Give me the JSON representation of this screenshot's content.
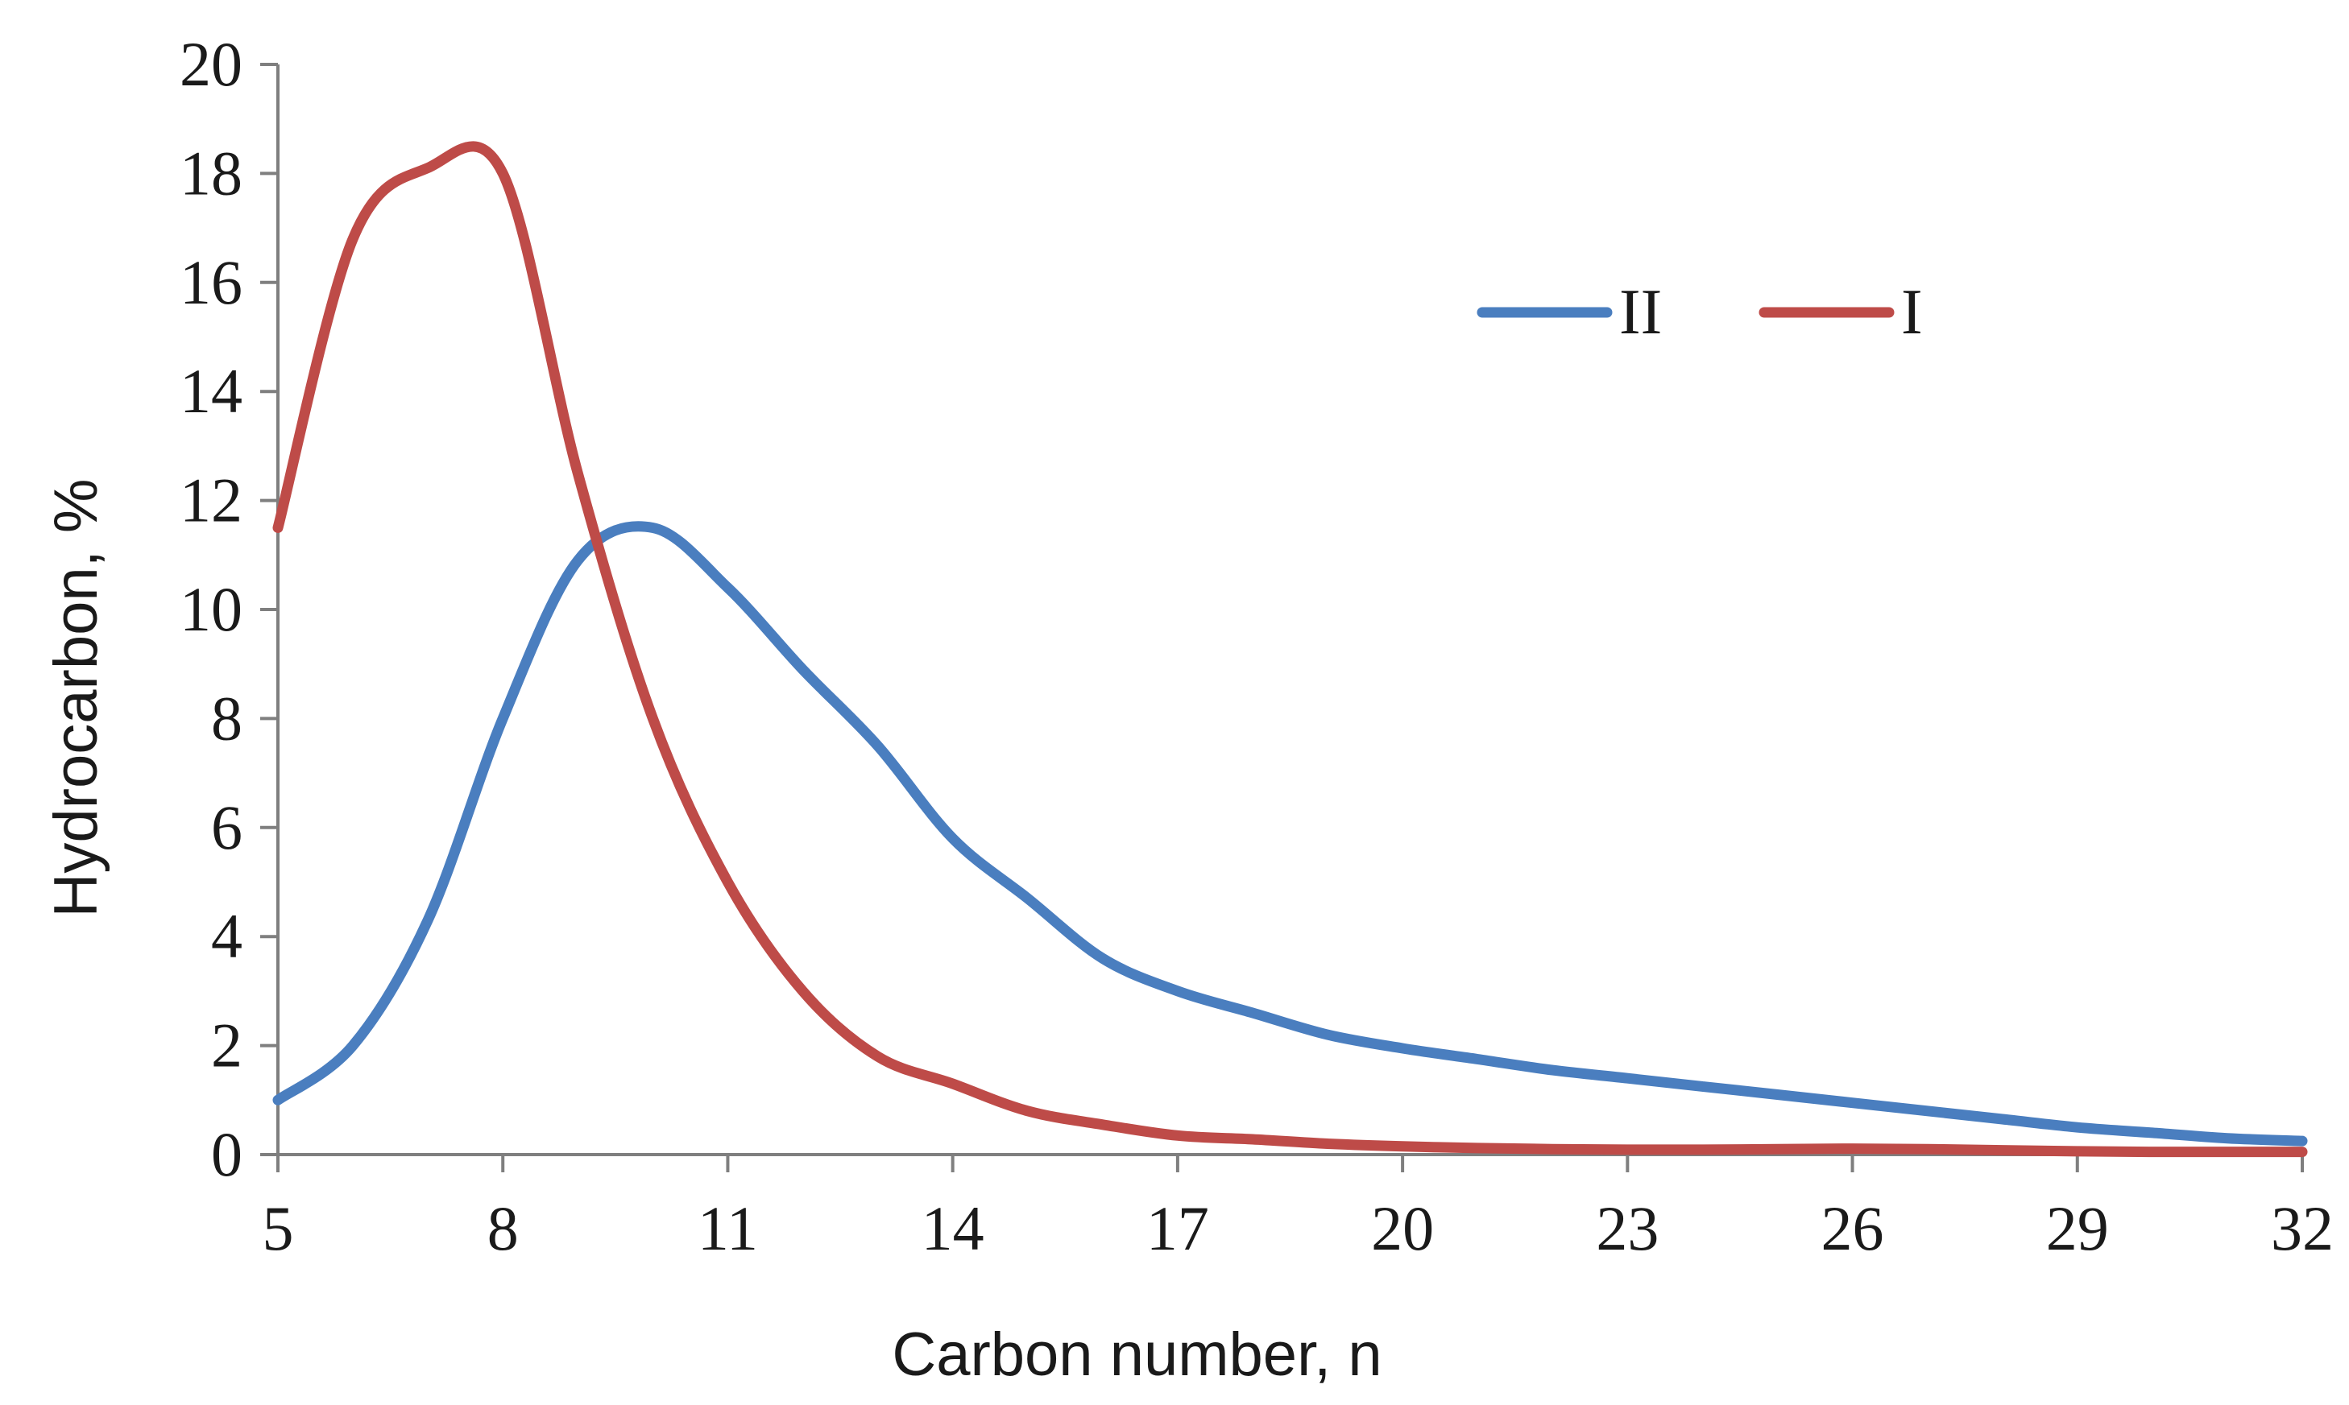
{
  "chart_data": {
    "type": "line",
    "title": "",
    "xlabel": "Carbon number, n",
    "ylabel": "Hydrocarbon, %",
    "xlim": [
      5,
      32
    ],
    "ylim": [
      0,
      20
    ],
    "xticks": [
      5,
      8,
      11,
      14,
      17,
      20,
      23,
      26,
      29,
      32
    ],
    "yticks": [
      0,
      2,
      4,
      6,
      8,
      10,
      12,
      14,
      16,
      18,
      20
    ],
    "grid": false,
    "legend_position": "top-right",
    "series": [
      {
        "name": "II",
        "color": "#4a7ebf",
        "x": [
          5,
          6,
          7,
          8,
          9,
          10,
          11,
          12,
          13,
          14,
          15,
          16,
          17,
          18,
          19,
          20,
          21,
          22,
          23,
          24,
          25,
          26,
          27,
          28,
          29,
          30,
          31,
          32
        ],
        "y": [
          1.0,
          2.0,
          4.3,
          8.0,
          10.9,
          11.5,
          10.4,
          8.9,
          7.5,
          5.8,
          4.7,
          3.6,
          3.0,
          2.6,
          2.2,
          1.95,
          1.75,
          1.55,
          1.4,
          1.25,
          1.1,
          0.95,
          0.8,
          0.65,
          0.5,
          0.4,
          0.3,
          0.25
        ]
      },
      {
        "name": "I",
        "color": "#be4b48",
        "x": [
          5,
          6,
          7,
          8,
          9,
          10,
          11,
          12,
          13,
          14,
          15,
          16,
          17,
          18,
          19,
          20,
          21,
          22,
          23,
          24,
          25,
          26,
          27,
          28,
          29,
          30,
          31,
          32
        ],
        "y": [
          11.5,
          16.8,
          18.1,
          18.0,
          12.5,
          8.0,
          5.0,
          3.0,
          1.8,
          1.3,
          0.8,
          0.55,
          0.35,
          0.28,
          0.2,
          0.15,
          0.12,
          0.1,
          0.09,
          0.09,
          0.1,
          0.11,
          0.1,
          0.08,
          0.06,
          0.05,
          0.05,
          0.05
        ]
      }
    ]
  }
}
